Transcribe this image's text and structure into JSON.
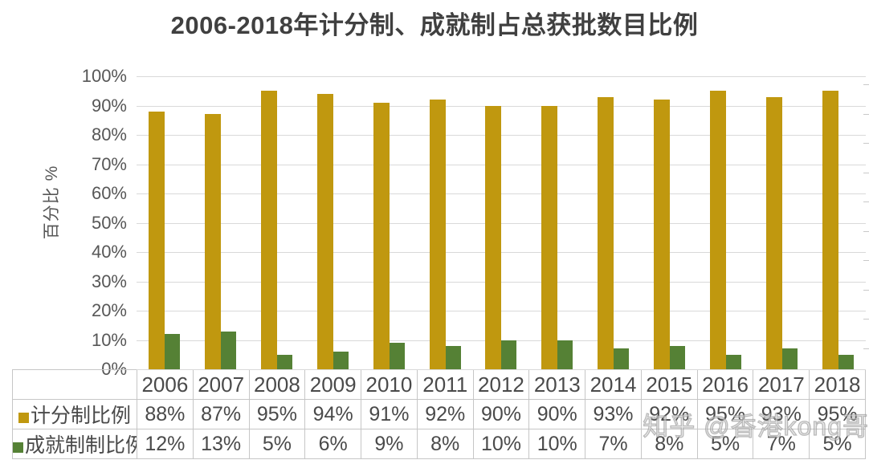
{
  "chart_data": {
    "type": "bar",
    "title": "2006-2018年计分制、成就制占总获批数目比例",
    "xlabel": "",
    "ylabel": "百分比 %",
    "categories": [
      "2006",
      "2007",
      "2008",
      "2009",
      "2010",
      "2011",
      "2012",
      "2013",
      "2014",
      "2015",
      "2016",
      "2017",
      "2018"
    ],
    "series": [
      {
        "name": "计分制比例",
        "color": "#C0980F",
        "unit": "%",
        "values": [
          88,
          87,
          95,
          94,
          91,
          92,
          90,
          90,
          93,
          92,
          95,
          93,
          95
        ]
      },
      {
        "name": "成就制制比例",
        "color": "#558135",
        "unit": "%",
        "values": [
          12,
          13,
          5,
          6,
          9,
          8,
          10,
          10,
          7,
          8,
          5,
          7,
          5
        ]
      }
    ],
    "ylim": [
      0,
      100
    ],
    "ytick_step": 10,
    "ytick_labels": [
      "0%",
      "10%",
      "20%",
      "30%",
      "40%",
      "50%",
      "60%",
      "70%",
      "80%",
      "90%",
      "100%"
    ],
    "grid": true,
    "legend_position": "data-table-left",
    "data_table_shown": true
  },
  "watermark": {
    "text": "知乎 @香港kong哥"
  },
  "colors": {
    "series1": "#C0980F",
    "series2": "#558135",
    "gridline": "#D9D9D9",
    "table_border": "#C6C6C6",
    "title_text": "#404040",
    "axis_text": "#575757",
    "table_text": "#4A4A4A",
    "background": "#FFFFFF"
  }
}
